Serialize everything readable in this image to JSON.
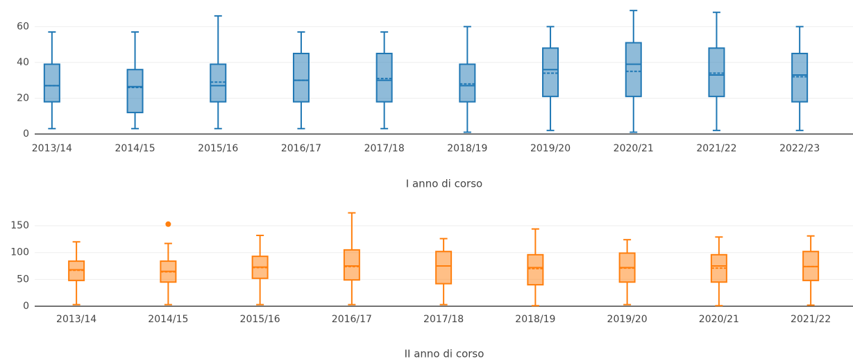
{
  "chart_data": [
    {
      "type": "box",
      "color": "#1f77b4",
      "fill": "rgba(31,119,180,0.5)",
      "xlabel": "I anno di corso",
      "categories": [
        "2013/14",
        "2014/15",
        "2015/16",
        "2016/17",
        "2017/18",
        "2018/19",
        "2019/20",
        "2020/21",
        "2021/22",
        "2022/23"
      ],
      "min": [
        3,
        3,
        3,
        3,
        3,
        1,
        2,
        1,
        2,
        2
      ],
      "q1": [
        18,
        12,
        18,
        18,
        18,
        18,
        21,
        21,
        21,
        18
      ],
      "median": [
        27,
        26.5,
        27,
        30,
        30,
        27,
        36,
        39,
        33,
        33
      ],
      "mean": [
        27,
        26,
        29,
        30,
        31,
        28,
        34,
        35,
        34,
        32
      ],
      "q3": [
        39,
        36,
        39,
        45,
        45,
        39,
        48,
        51,
        48,
        45
      ],
      "max": [
        57,
        57,
        66,
        57,
        57,
        60,
        60,
        69,
        68,
        60
      ],
      "outliers": [
        [],
        [],
        [],
        [],
        [],
        [],
        [],
        [],
        [],
        []
      ],
      "ylim": [
        0,
        71
      ],
      "yticks": [
        0,
        20,
        40,
        60
      ],
      "grid": true
    },
    {
      "type": "box",
      "color": "#ff7f0e",
      "fill": "rgba(255,127,14,0.5)",
      "xlabel": "II anno di corso",
      "categories": [
        "2013/14",
        "2014/15",
        "2015/16",
        "2016/17",
        "2017/18",
        "2018/19",
        "2019/20",
        "2020/21",
        "2021/22"
      ],
      "min": [
        3,
        3,
        3,
        3,
        3,
        1,
        3,
        1,
        2
      ],
      "q1": [
        48,
        45,
        52,
        49,
        42,
        40,
        45,
        45,
        48
      ],
      "median": [
        68,
        65,
        73,
        75,
        75,
        72,
        72,
        75,
        74
      ],
      "mean": [
        67,
        64,
        72,
        74,
        75,
        70,
        71,
        71,
        74
      ],
      "q3": [
        84,
        84,
        93,
        105,
        102,
        96,
        99,
        96,
        102
      ],
      "max": [
        120,
        117,
        132,
        174,
        126,
        144,
        124,
        129,
        131
      ],
      "outliers": [
        [],
        [
          153
        ],
        [],
        [],
        [],
        [],
        [],
        [],
        []
      ],
      "ylim": [
        0,
        176
      ],
      "yticks": [
        0,
        50,
        100,
        150
      ],
      "grid": true
    }
  ]
}
